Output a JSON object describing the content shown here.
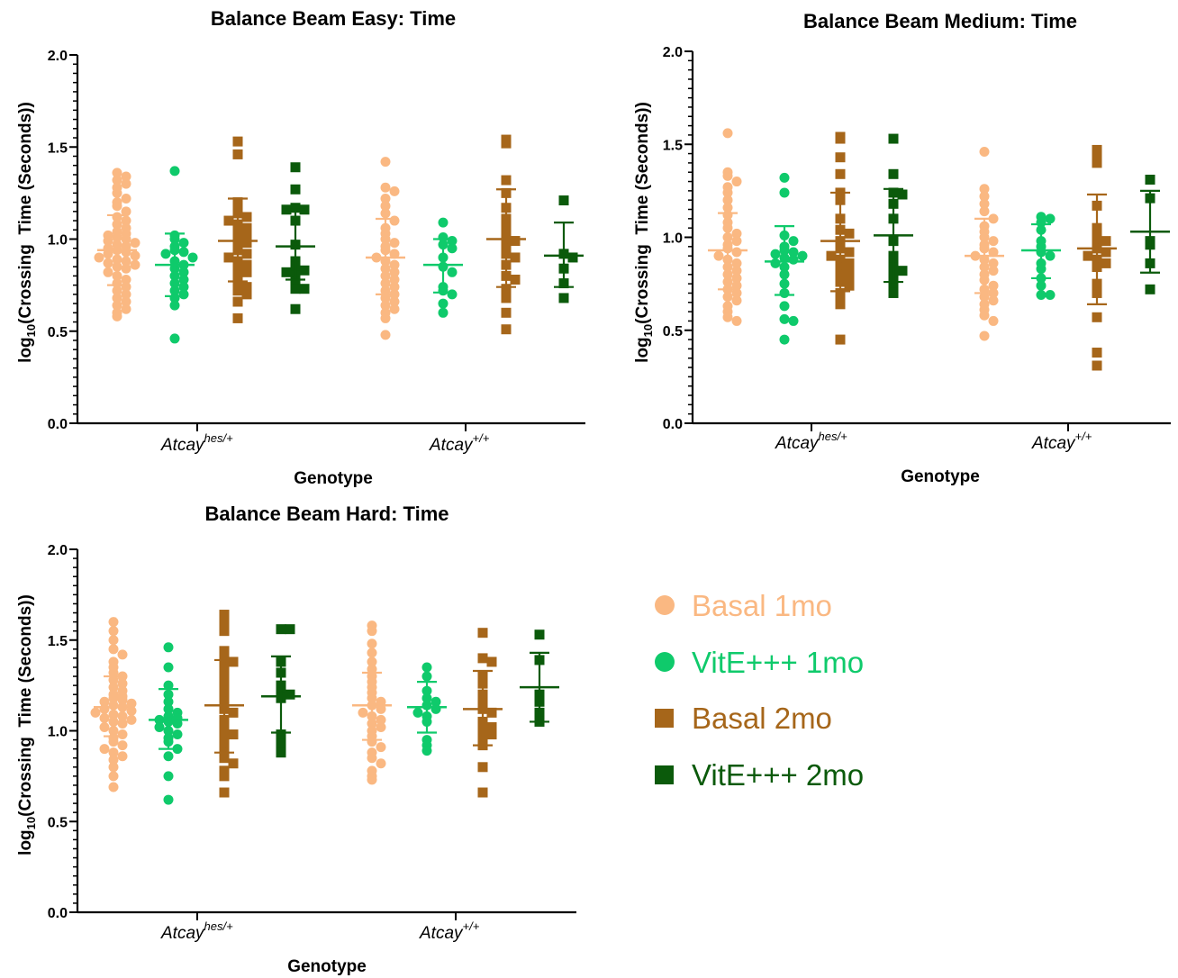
{
  "chart_data": [
    {
      "type": "scatter",
      "title": "Balance Beam Easy: Time",
      "xlabel": "Genotype",
      "ylabel": "log10(Crossing Time (Seconds))",
      "ylim": [
        0,
        2
      ],
      "yticks": [
        "0.0",
        "0.5",
        "1.0",
        "1.5",
        "2.0"
      ],
      "categories": [
        {
          "base": "Atcay",
          "sup": "hes/+"
        },
        {
          "base": "Atcay",
          "sup": "+/+"
        }
      ],
      "groups": [
        {
          "category": 0,
          "series": 0,
          "mean": 0.94,
          "sd_low": 0.75,
          "sd_high": 1.13,
          "values": [
            1.36,
            1.34,
            1.32,
            1.3,
            1.28,
            1.25,
            1.22,
            1.2,
            1.18,
            1.15,
            1.12,
            1.1,
            1.08,
            1.06,
            1.04,
            1.03,
            1.02,
            1.01,
            1.0,
            0.99,
            0.98,
            0.97,
            0.96,
            0.95,
            0.94,
            0.93,
            0.92,
            0.91,
            0.9,
            0.89,
            0.88,
            0.87,
            0.86,
            0.85,
            0.84,
            0.82,
            0.8,
            0.78,
            0.76,
            0.74,
            0.72,
            0.7,
            0.68,
            0.66,
            0.64,
            0.62,
            0.6,
            0.58
          ]
        },
        {
          "category": 0,
          "series": 1,
          "mean": 0.86,
          "sd_low": 0.69,
          "sd_high": 1.03,
          "values": [
            1.37,
            1.02,
            1.0,
            0.98,
            0.96,
            0.94,
            0.93,
            0.92,
            0.9,
            0.88,
            0.86,
            0.84,
            0.82,
            0.8,
            0.78,
            0.76,
            0.74,
            0.72,
            0.7,
            0.68,
            0.64,
            0.46
          ]
        },
        {
          "category": 0,
          "series": 2,
          "mean": 0.99,
          "sd_low": 0.77,
          "sd_high": 1.22,
          "values": [
            1.53,
            1.46,
            1.2,
            1.17,
            1.14,
            1.12,
            1.1,
            1.08,
            1.06,
            1.04,
            1.02,
            1.0,
            0.98,
            0.96,
            0.94,
            0.92,
            0.9,
            0.88,
            0.86,
            0.84,
            0.82,
            0.8,
            0.77,
            0.74,
            0.72,
            0.7,
            0.66,
            0.57
          ]
        },
        {
          "category": 0,
          "series": 3,
          "mean": 0.96,
          "sd_low": 0.78,
          "sd_high": 1.16,
          "values": [
            1.39,
            1.27,
            1.17,
            1.16,
            1.16,
            1.1,
            0.97,
            0.88,
            0.85,
            0.83,
            0.82,
            0.8,
            0.77,
            0.73,
            0.73,
            0.62
          ]
        },
        {
          "category": 1,
          "series": 0,
          "mean": 0.9,
          "sd_low": 0.7,
          "sd_high": 1.11,
          "values": [
            1.42,
            1.28,
            1.26,
            1.22,
            1.18,
            1.14,
            1.1,
            1.06,
            1.03,
            1.0,
            0.98,
            0.96,
            0.94,
            0.92,
            0.9,
            0.88,
            0.86,
            0.84,
            0.82,
            0.8,
            0.78,
            0.76,
            0.74,
            0.72,
            0.7,
            0.68,
            0.66,
            0.64,
            0.62,
            0.6,
            0.57,
            0.48
          ]
        },
        {
          "category": 1,
          "series": 1,
          "mean": 0.86,
          "sd_low": 0.71,
          "sd_high": 1.0,
          "values": [
            1.09,
            1.01,
            0.99,
            0.97,
            0.95,
            0.9,
            0.85,
            0.82,
            0.74,
            0.72,
            0.7,
            0.65,
            0.6
          ]
        },
        {
          "category": 1,
          "series": 2,
          "mean": 1.0,
          "sd_low": 0.74,
          "sd_high": 1.27,
          "values": [
            1.54,
            1.52,
            1.32,
            1.25,
            1.17,
            1.11,
            1.06,
            1.04,
            1.0,
            0.99,
            0.95,
            0.92,
            0.9,
            0.86,
            0.8,
            0.78,
            0.73,
            0.68,
            0.6,
            0.51
          ]
        },
        {
          "category": 1,
          "series": 3,
          "mean": 0.91,
          "sd_low": 0.74,
          "sd_high": 1.09,
          "values": [
            1.21,
            0.92,
            0.9,
            0.84,
            0.76,
            0.68
          ]
        }
      ]
    },
    {
      "type": "scatter",
      "title": "Balance Beam Medium: Time",
      "xlabel": "Genotype",
      "ylabel": "log10(Crossing Time (Seconds))",
      "ylim": [
        0,
        2
      ],
      "yticks": [
        "0.0",
        "0.5",
        "1.0",
        "1.5",
        "2.0"
      ],
      "categories": [
        {
          "base": "Atcay",
          "sup": "hes/+"
        },
        {
          "base": "Atcay",
          "sup": "+/+"
        }
      ],
      "groups": [
        {
          "category": 0,
          "series": 0,
          "mean": 0.93,
          "sd_low": 0.72,
          "sd_high": 1.13,
          "values": [
            1.56,
            1.35,
            1.33,
            1.3,
            1.27,
            1.24,
            1.2,
            1.16,
            1.12,
            1.08,
            1.05,
            1.02,
            1.0,
            0.98,
            0.96,
            0.94,
            0.92,
            0.9,
            0.88,
            0.86,
            0.84,
            0.82,
            0.8,
            0.78,
            0.76,
            0.74,
            0.72,
            0.7,
            0.68,
            0.66,
            0.63,
            0.6,
            0.57,
            0.55
          ]
        },
        {
          "category": 0,
          "series": 1,
          "mean": 0.87,
          "sd_low": 0.69,
          "sd_high": 1.06,
          "values": [
            1.32,
            1.24,
            1.01,
            0.98,
            0.95,
            0.93,
            0.92,
            0.91,
            0.9,
            0.89,
            0.88,
            0.86,
            0.84,
            0.8,
            0.75,
            0.7,
            0.63,
            0.56,
            0.55,
            0.45
          ]
        },
        {
          "category": 0,
          "series": 2,
          "mean": 0.98,
          "sd_low": 0.71,
          "sd_high": 1.24,
          "values": [
            1.54,
            1.53,
            1.43,
            1.34,
            1.24,
            1.2,
            1.1,
            1.04,
            1.02,
            0.98,
            0.96,
            0.94,
            0.92,
            0.9,
            0.88,
            0.86,
            0.84,
            0.82,
            0.8,
            0.78,
            0.76,
            0.74,
            0.7,
            0.66,
            0.64,
            0.45
          ]
        },
        {
          "category": 0,
          "series": 3,
          "mean": 1.01,
          "sd_low": 0.76,
          "sd_high": 1.26,
          "values": [
            1.53,
            1.34,
            1.24,
            1.23,
            1.18,
            1.1,
            0.98,
            0.9,
            0.86,
            0.84,
            0.82,
            0.79,
            0.74,
            0.7
          ]
        },
        {
          "category": 1,
          "series": 0,
          "mean": 0.9,
          "sd_low": 0.7,
          "sd_high": 1.1,
          "values": [
            1.46,
            1.26,
            1.22,
            1.18,
            1.14,
            1.1,
            1.06,
            1.03,
            1.0,
            0.98,
            0.96,
            0.94,
            0.92,
            0.9,
            0.88,
            0.86,
            0.84,
            0.82,
            0.8,
            0.77,
            0.74,
            0.72,
            0.7,
            0.68,
            0.66,
            0.64,
            0.61,
            0.58,
            0.55,
            0.47
          ]
        },
        {
          "category": 1,
          "series": 1,
          "mean": 0.93,
          "sd_low": 0.78,
          "sd_high": 1.07,
          "values": [
            1.11,
            1.1,
            1.08,
            1.04,
            0.98,
            0.95,
            0.92,
            0.9,
            0.86,
            0.83,
            0.78,
            0.74,
            0.69,
            0.69
          ]
        },
        {
          "category": 1,
          "series": 2,
          "mean": 0.94,
          "sd_low": 0.64,
          "sd_high": 1.23,
          "values": [
            1.47,
            1.45,
            1.4,
            1.17,
            1.05,
            1.0,
            0.98,
            0.96,
            0.94,
            0.92,
            0.9,
            0.88,
            0.86,
            0.84,
            0.75,
            0.7,
            0.57,
            0.38,
            0.31
          ]
        },
        {
          "category": 1,
          "series": 3,
          "mean": 1.03,
          "sd_low": 0.81,
          "sd_high": 1.25,
          "values": [
            1.31,
            1.21,
            0.98,
            0.96,
            0.86,
            0.72
          ]
        }
      ]
    },
    {
      "type": "scatter",
      "title": "Balance Beam Hard: Time",
      "xlabel": "Genotype",
      "ylabel": "log10(Crossing Time (Seconds))",
      "ylim": [
        0,
        2
      ],
      "yticks": [
        "0.0",
        "0.5",
        "1.0",
        "1.5",
        "2.0"
      ],
      "categories": [
        {
          "base": "Atcay",
          "sup": "hes/+"
        },
        {
          "base": "Atcay",
          "sup": "+/+"
        }
      ],
      "groups": [
        {
          "category": 0,
          "series": 0,
          "mean": 1.13,
          "sd_low": 0.97,
          "sd_high": 1.3,
          "values": [
            1.6,
            1.55,
            1.5,
            1.45,
            1.42,
            1.38,
            1.35,
            1.32,
            1.3,
            1.28,
            1.26,
            1.24,
            1.22,
            1.2,
            1.19,
            1.18,
            1.17,
            1.16,
            1.15,
            1.14,
            1.13,
            1.12,
            1.11,
            1.1,
            1.09,
            1.08,
            1.07,
            1.06,
            1.05,
            1.04,
            1.02,
            1.0,
            0.98,
            0.96,
            0.94,
            0.92,
            0.9,
            0.88,
            0.86,
            0.84,
            0.8,
            0.75,
            0.69
          ]
        },
        {
          "category": 0,
          "series": 1,
          "mean": 1.06,
          "sd_low": 0.9,
          "sd_high": 1.23,
          "values": [
            1.46,
            1.35,
            1.25,
            1.2,
            1.16,
            1.12,
            1.1,
            1.08,
            1.07,
            1.06,
            1.05,
            1.04,
            1.02,
            1.0,
            0.98,
            0.96,
            0.94,
            0.9,
            0.86,
            0.75,
            0.62
          ]
        },
        {
          "category": 0,
          "series": 2,
          "mean": 1.14,
          "sd_low": 0.88,
          "sd_high": 1.39,
          "values": [
            1.64,
            1.6,
            1.55,
            1.44,
            1.4,
            1.38,
            1.35,
            1.3,
            1.26,
            1.22,
            1.2,
            1.16,
            1.12,
            1.1,
            1.06,
            1.02,
            1.0,
            0.98,
            0.95,
            0.92,
            0.88,
            0.85,
            0.82,
            0.78,
            0.75,
            0.66
          ]
        },
        {
          "category": 0,
          "series": 3,
          "mean": 1.19,
          "sd_low": 0.99,
          "sd_high": 1.41,
          "values": [
            1.56,
            1.56,
            1.38,
            1.32,
            1.25,
            1.21,
            1.2,
            1.18,
            0.98,
            0.93,
            0.88
          ]
        },
        {
          "category": 1,
          "series": 0,
          "mean": 1.14,
          "sd_low": 0.95,
          "sd_high": 1.32,
          "values": [
            1.58,
            1.55,
            1.48,
            1.43,
            1.38,
            1.34,
            1.3,
            1.27,
            1.24,
            1.21,
            1.18,
            1.16,
            1.14,
            1.12,
            1.1,
            1.08,
            1.06,
            1.04,
            1.02,
            1.0,
            0.97,
            0.94,
            0.91,
            0.88,
            0.85,
            0.82,
            0.78,
            0.75,
            0.73
          ]
        },
        {
          "category": 1,
          "series": 1,
          "mean": 1.13,
          "sd_low": 0.99,
          "sd_high": 1.27,
          "values": [
            1.35,
            1.3,
            1.22,
            1.18,
            1.16,
            1.14,
            1.12,
            1.1,
            1.08,
            1.05,
            0.95,
            0.92,
            0.89
          ]
        },
        {
          "category": 1,
          "series": 2,
          "mean": 1.12,
          "sd_low": 0.92,
          "sd_high": 1.33,
          "values": [
            1.54,
            1.4,
            1.38,
            1.3,
            1.26,
            1.2,
            1.15,
            1.12,
            1.1,
            1.05,
            1.02,
            1.0,
            0.98,
            0.95,
            0.92,
            0.8,
            0.66
          ]
        },
        {
          "category": 1,
          "series": 3,
          "mean": 1.24,
          "sd_low": 1.05,
          "sd_high": 1.43,
          "values": [
            1.53,
            1.39,
            1.2,
            1.16,
            1.1,
            1.05
          ]
        }
      ]
    }
  ],
  "legend": {
    "placement": "right-of-bottom-chart",
    "items": [
      {
        "label": "Basal 1mo",
        "color": "#FAB882",
        "marker": "circle"
      },
      {
        "label": "VitE+++ 1mo",
        "color": "#0FCA6B",
        "marker": "circle"
      },
      {
        "label": "Basal 2mo",
        "color": "#A6661A",
        "marker": "square"
      },
      {
        "label": "VitE+++ 2mo",
        "color": "#0B5A0B",
        "marker": "square"
      }
    ]
  }
}
